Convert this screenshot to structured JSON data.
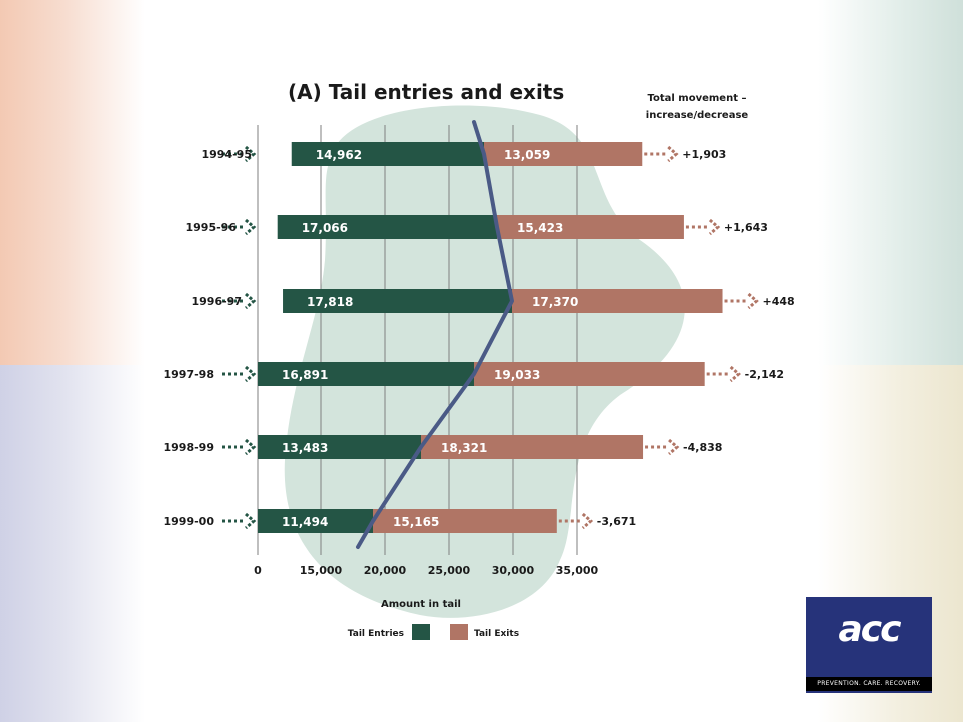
{
  "chart_data": {
    "type": "bar",
    "title": "(A) Tail entries and exits",
    "movement_header": [
      "Total movement –",
      "increase/decrease"
    ],
    "xlabel": "Amount in tail",
    "xlim": [
      0,
      35000
    ],
    "xticks": [
      "0",
      "15,000",
      "20,000",
      "25,000",
      "30,000",
      "35,000"
    ],
    "categories": [
      "1994-95",
      "1995-96",
      "1996-97",
      "1997-98",
      "1998-99",
      "1999-00"
    ],
    "series": [
      {
        "name": "Tail Entries",
        "color": "#245545",
        "values": [
          14962,
          17066,
          17818,
          16891,
          13483,
          11494
        ],
        "labels": [
          "14,962",
          "17,066",
          "17,818",
          "16,891",
          "13,483",
          "11,494"
        ]
      },
      {
        "name": "Tail Exits",
        "color": "#b07565",
        "values": [
          13059,
          15423,
          17370,
          19033,
          18321,
          15165
        ],
        "labels": [
          "13,059",
          "15,423",
          "17,370",
          "19,033",
          "18,321",
          "15,165"
        ]
      }
    ],
    "movement": [
      "+1,903",
      "+1,643",
      "+448",
      "-2,142",
      "-4,838",
      "-3,671"
    ],
    "legend": {
      "placement": "bottom-center",
      "entries": [
        "Tail Entries",
        "Tail Exits"
      ]
    },
    "grid": true
  },
  "logo": {
    "mark": "acc",
    "tagline": "PREVENTION. CARE. RECOVERY."
  }
}
